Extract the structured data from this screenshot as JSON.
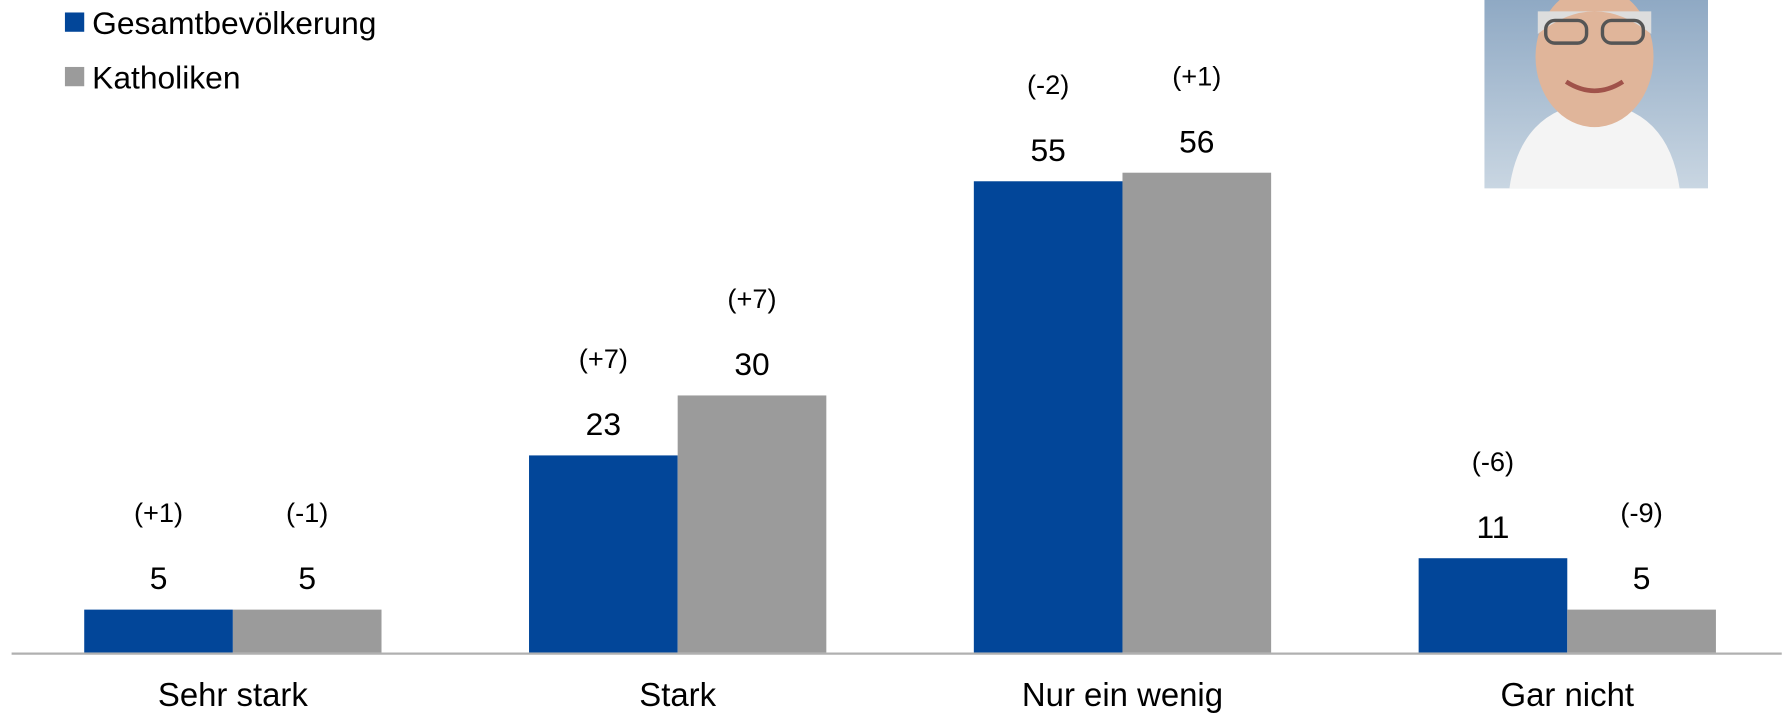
{
  "chart_data": {
    "type": "bar",
    "categories": [
      "Sehr stark",
      "Stark",
      "Nur ein wenig",
      "Gar nicht"
    ],
    "series": [
      {
        "name": "Gesamtbevölkerung",
        "color": "#024699",
        "values": [
          5,
          23,
          55,
          11
        ],
        "changes": [
          "(+1)",
          "(+7)",
          "(-2)",
          "(-6)"
        ]
      },
      {
        "name": "Katholiken",
        "color": "#9b9b9b",
        "values": [
          5,
          30,
          56,
          5
        ],
        "changes": [
          "(-1)",
          "(+7)",
          "(+1)",
          "(-9)"
        ]
      }
    ]
  }
}
